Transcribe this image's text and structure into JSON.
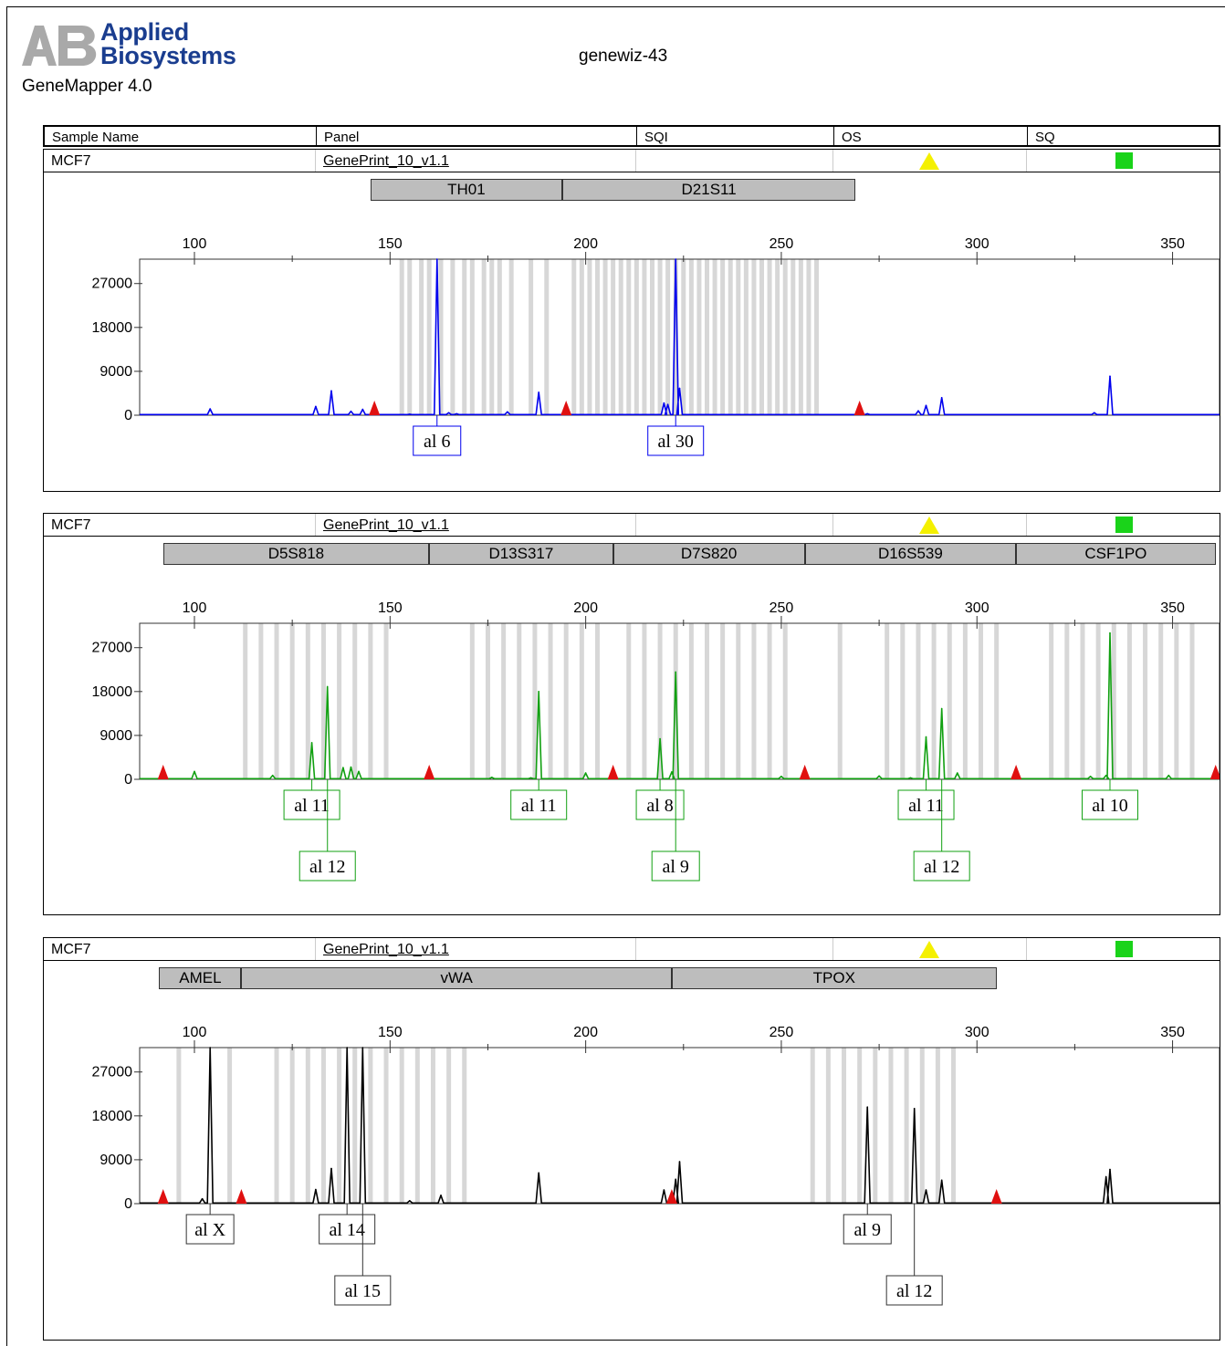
{
  "brand": {
    "name_line1": "Applied",
    "name_line2": "Biosystems",
    "app": "GeneMapper  4.0"
  },
  "doc_title": "genewiz-43",
  "table_header": [
    "Sample Name",
    "Panel",
    "SQI",
    "OS",
    "SQ"
  ],
  "status_colors": {
    "os": "#f4f000",
    "sq": "#1ad31a",
    "size_standard": "#e01010"
  },
  "panels": [
    {
      "sample": "MCF7",
      "panel": "GenePrint_10_v1.1"
    },
    {
      "sample": "MCF7",
      "panel": "GenePrint_10_v1.1"
    },
    {
      "sample": "MCF7",
      "panel": "GenePrint_10_v1.1"
    }
  ],
  "chart_data": [
    {
      "type": "line",
      "dye_color": "#0000ee",
      "markers": [
        {
          "name": "TH01",
          "start": 145,
          "end": 194
        },
        {
          "name": "D21S11",
          "start": 194,
          "end": 269
        }
      ],
      "x_ticks": [
        100,
        150,
        200,
        250,
        300,
        350
      ],
      "y_ticks": [
        0,
        9000,
        18000,
        27000
      ],
      "xlim": [
        86,
        362
      ],
      "ylim": [
        0,
        32000
      ],
      "bins": [
        153,
        155,
        158,
        160,
        163,
        166,
        169,
        171,
        174,
        176,
        178,
        181,
        186,
        190,
        197,
        199,
        201,
        203,
        205,
        207,
        209,
        211,
        213,
        215,
        217,
        219,
        221,
        223,
        225,
        227,
        229,
        231,
        233,
        235,
        237,
        239,
        241,
        243,
        245,
        247,
        249,
        251,
        253,
        255,
        257,
        259
      ],
      "size_standards": [
        146,
        195,
        270
      ],
      "peaks": [
        [
          104,
          1300
        ],
        [
          131,
          1800
        ],
        [
          135,
          5000
        ],
        [
          140,
          800
        ],
        [
          143,
          1200
        ],
        [
          155,
          200
        ],
        [
          162,
          32000
        ],
        [
          165,
          500
        ],
        [
          167,
          300
        ],
        [
          180,
          700
        ],
        [
          188,
          4700
        ],
        [
          220,
          2500
        ],
        [
          221,
          2200
        ],
        [
          223,
          32000
        ],
        [
          224,
          5500
        ],
        [
          272,
          300
        ],
        [
          285,
          900
        ],
        [
          287,
          2000
        ],
        [
          291,
          3600
        ],
        [
          330,
          500
        ],
        [
          334,
          8000
        ]
      ],
      "alleles": [
        {
          "label": "al 6",
          "x": 162,
          "tier": 1
        },
        {
          "label": "al 30",
          "x": 223,
          "tier": 1
        }
      ]
    },
    {
      "type": "line",
      "dye_color": "#11a011",
      "markers": [
        {
          "name": "D5S818",
          "start": 92,
          "end": 160
        },
        {
          "name": "D13S317",
          "start": 160,
          "end": 207
        },
        {
          "name": "D7S820",
          "start": 207,
          "end": 256
        },
        {
          "name": "D16S539",
          "start": 256,
          "end": 310
        },
        {
          "name": "CSF1PO",
          "start": 310,
          "end": 361
        }
      ],
      "x_ticks": [
        100,
        150,
        200,
        250,
        300,
        350
      ],
      "y_ticks": [
        0,
        9000,
        18000,
        27000
      ],
      "xlim": [
        86,
        362
      ],
      "ylim": [
        0,
        32000
      ],
      "bins": [
        113,
        117,
        121,
        125,
        129,
        133,
        137,
        141,
        145,
        149,
        171,
        175,
        179,
        183,
        187,
        191,
        195,
        199,
        203,
        211,
        215,
        219,
        223,
        227,
        231,
        235,
        239,
        243,
        247,
        251,
        265,
        277,
        281,
        285,
        289,
        293,
        297,
        301,
        305,
        319,
        323,
        327,
        331,
        335,
        339,
        343,
        347,
        351,
        355
      ],
      "size_standards": [
        92,
        160,
        207,
        256,
        310,
        361
      ],
      "peaks": [
        [
          100,
          1600
        ],
        [
          120,
          800
        ],
        [
          130,
          7500
        ],
        [
          134,
          19000
        ],
        [
          138,
          2400
        ],
        [
          140,
          2500
        ],
        [
          142,
          1600
        ],
        [
          176,
          400
        ],
        [
          186,
          300
        ],
        [
          188,
          18000
        ],
        [
          200,
          1300
        ],
        [
          219,
          8300
        ],
        [
          222,
          1500
        ],
        [
          223,
          22000
        ],
        [
          250,
          600
        ],
        [
          275,
          700
        ],
        [
          283,
          300
        ],
        [
          287,
          8700
        ],
        [
          291,
          14500
        ],
        [
          295,
          1300
        ],
        [
          329,
          600
        ],
        [
          333,
          800
        ],
        [
          334,
          30000
        ],
        [
          349,
          800
        ]
      ],
      "alleles": [
        {
          "label": "al 11",
          "x": 130,
          "tier": 1
        },
        {
          "label": "al 12",
          "x": 134,
          "tier": 2
        },
        {
          "label": "al 11",
          "x": 188,
          "tier": 1
        },
        {
          "label": "al 8",
          "x": 219,
          "tier": 1
        },
        {
          "label": "al 9",
          "x": 223,
          "tier": 2
        },
        {
          "label": "al 11",
          "x": 287,
          "tier": 1
        },
        {
          "label": "al 12",
          "x": 291,
          "tier": 2
        },
        {
          "label": "al 10",
          "x": 334,
          "tier": 1
        }
      ]
    },
    {
      "type": "line",
      "dye_color": "#000000",
      "markers": [
        {
          "name": "AMEL",
          "start": 91,
          "end": 112
        },
        {
          "name": "vWA",
          "start": 112,
          "end": 222
        },
        {
          "name": "TPOX",
          "start": 222,
          "end": 305
        }
      ],
      "x_ticks": [
        100,
        150,
        200,
        250,
        300,
        350
      ],
      "y_ticks": [
        0,
        9000,
        18000,
        27000
      ],
      "xlim": [
        86,
        362
      ],
      "ylim": [
        0,
        32000
      ],
      "bins": [
        96,
        109,
        121,
        125,
        129,
        133,
        137,
        141,
        145,
        149,
        153,
        157,
        161,
        165,
        169,
        258,
        262,
        266,
        270,
        274,
        278,
        282,
        286,
        290,
        294
      ],
      "size_standards": [
        92,
        112,
        222,
        305
      ],
      "peaks": [
        [
          102,
          1000
        ],
        [
          104,
          32000
        ],
        [
          131,
          2900
        ],
        [
          135,
          7200
        ],
        [
          139,
          32000
        ],
        [
          143,
          32000
        ],
        [
          155,
          600
        ],
        [
          163,
          1700
        ],
        [
          188,
          6300
        ],
        [
          220,
          2800
        ],
        [
          223,
          5000
        ],
        [
          224,
          8600
        ],
        [
          272,
          19800
        ],
        [
          284,
          19500
        ],
        [
          287,
          2800
        ],
        [
          291,
          4800
        ],
        [
          333,
          5500
        ],
        [
          334,
          7000
        ]
      ],
      "alleles": [
        {
          "label": "al X",
          "x": 104,
          "tier": 1
        },
        {
          "label": "al 14",
          "x": 139,
          "tier": 1
        },
        {
          "label": "al 15",
          "x": 143,
          "tier": 2
        },
        {
          "label": "al 9",
          "x": 272,
          "tier": 1
        },
        {
          "label": "al 12",
          "x": 284,
          "tier": 2
        }
      ]
    }
  ]
}
